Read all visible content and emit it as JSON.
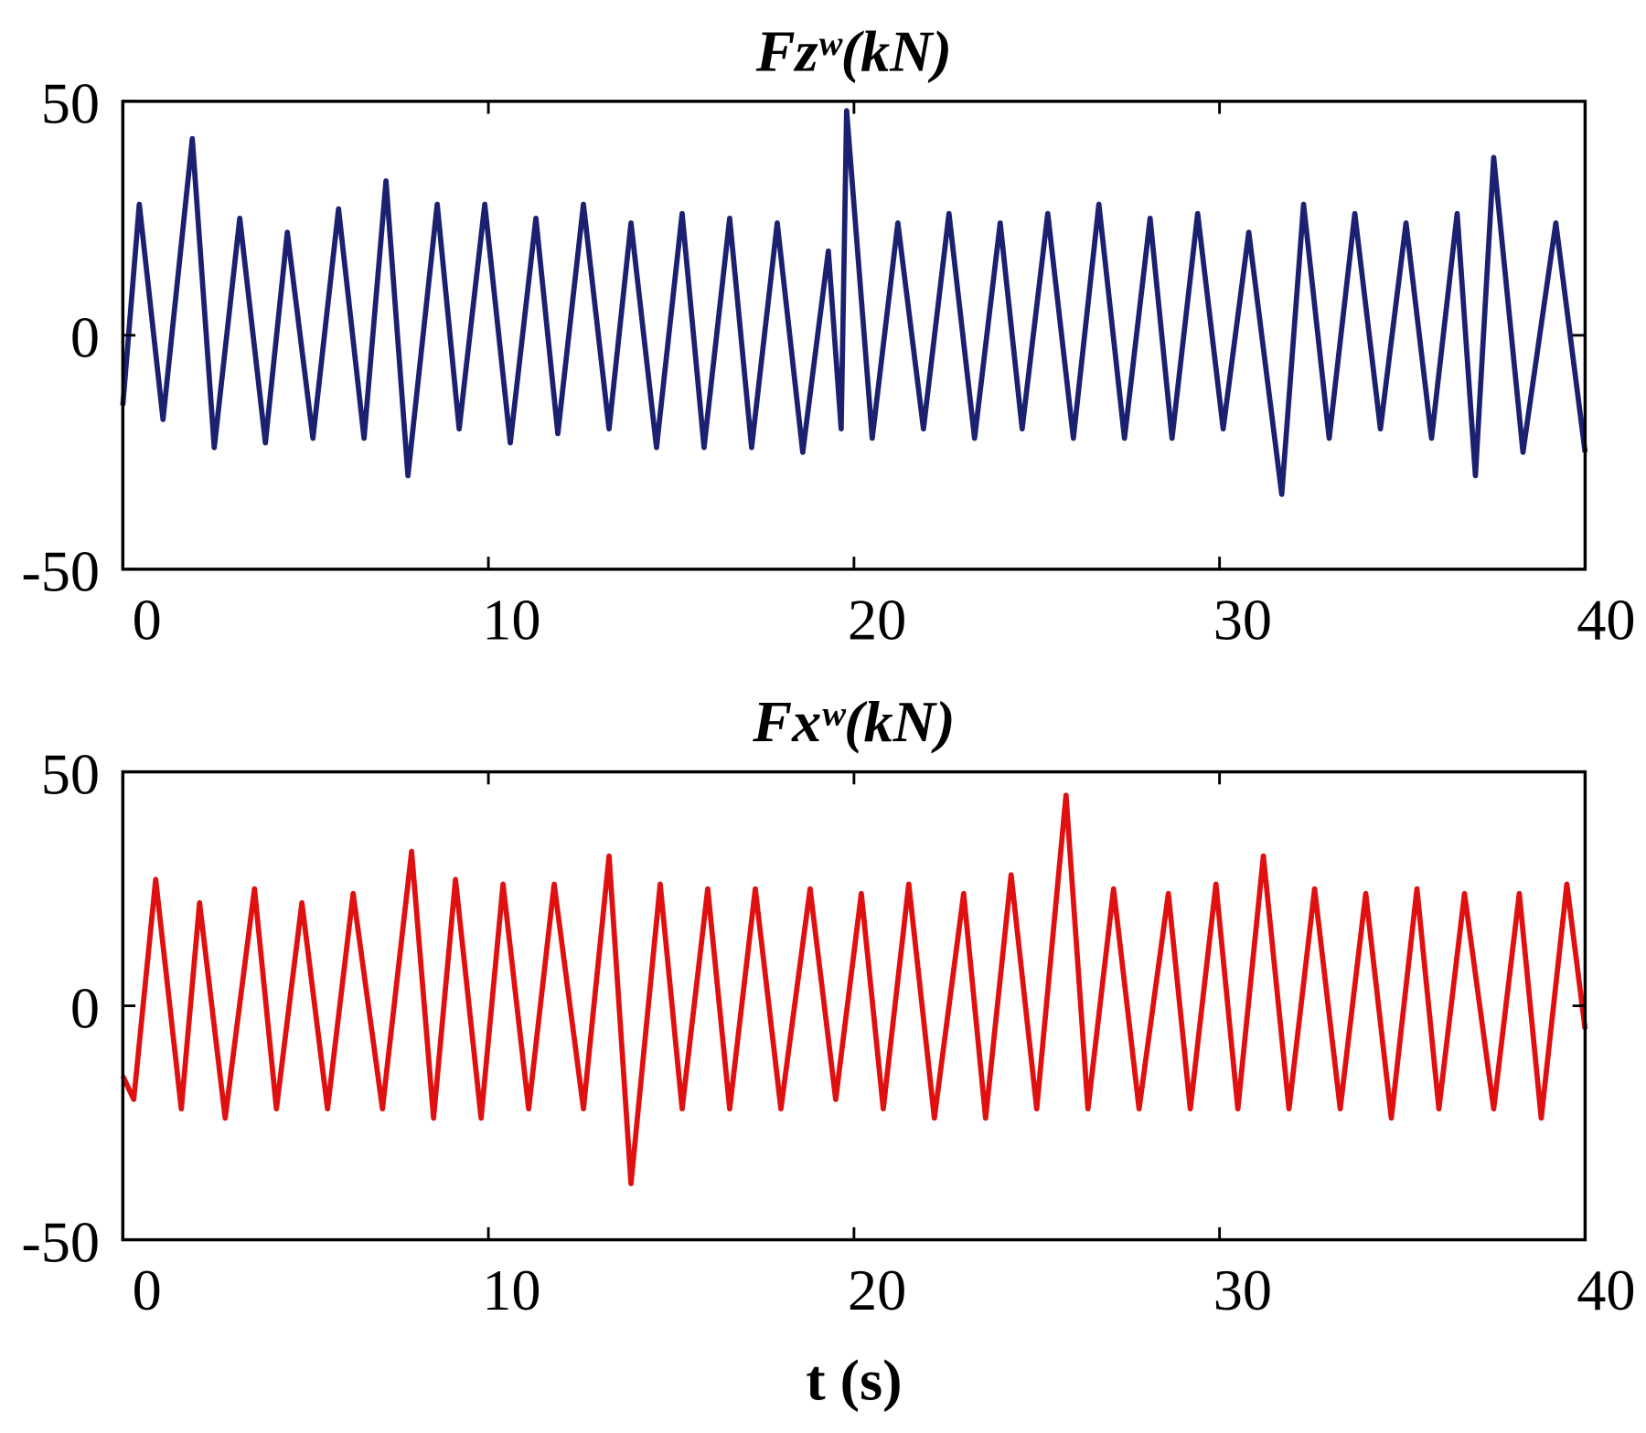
{
  "chart_data": [
    {
      "type": "line",
      "title": "Fzʷ(kN)",
      "xlim": [
        0,
        40
      ],
      "ylim": [
        -50,
        50
      ],
      "xticks": [
        0,
        10,
        20,
        30,
        40
      ],
      "yticks": [
        -50,
        0,
        50
      ],
      "grid": false,
      "x": [
        0,
        0.45,
        1.1,
        1.9,
        2.5,
        3.2,
        3.9,
        4.5,
        5.2,
        5.9,
        6.6,
        7.2,
        7.8,
        8.6,
        9.2,
        9.9,
        10.6,
        11.3,
        11.9,
        12.6,
        13.3,
        13.9,
        14.6,
        15.3,
        15.9,
        16.6,
        17.2,
        17.9,
        18.6,
        19.3,
        19.65,
        19.8,
        20.5,
        21.2,
        21.9,
        22.6,
        23.3,
        24.0,
        24.6,
        25.3,
        26.0,
        26.7,
        27.4,
        28.1,
        28.7,
        29.4,
        30.1,
        30.8,
        31.7,
        32.3,
        33.0,
        33.7,
        34.4,
        35.1,
        35.8,
        36.5,
        37.0,
        37.5,
        38.3,
        39.2,
        40
      ],
      "series": [
        {
          "color": "#1b2170",
          "values": [
            -15,
            28,
            -18,
            42,
            -24,
            25,
            -23,
            22,
            -22,
            27,
            -22,
            33,
            -30,
            28,
            -20,
            28,
            -23,
            25,
            -21,
            28,
            -20,
            24,
            -24,
            26,
            -24,
            25,
            -24,
            24,
            -25,
            18,
            -20,
            48,
            -22,
            24,
            -20,
            26,
            -22,
            24,
            -20,
            26,
            -22,
            28,
            -22,
            25,
            -22,
            26,
            -20,
            22,
            -34,
            28,
            -22,
            26,
            -20,
            24,
            -22,
            26,
            -30,
            38,
            -25,
            24,
            -25
          ]
        }
      ]
    },
    {
      "type": "line",
      "title": "Fxʷ(kN)",
      "xlabel": "t (s)",
      "xlim": [
        0,
        40
      ],
      "ylim": [
        -50,
        50
      ],
      "xticks": [
        0,
        10,
        20,
        30,
        40
      ],
      "yticks": [
        -50,
        0,
        50
      ],
      "grid": false,
      "x": [
        0,
        0.3,
        0.9,
        1.6,
        2.1,
        2.8,
        3.6,
        4.2,
        4.9,
        5.6,
        6.3,
        7.1,
        7.9,
        8.5,
        9.1,
        9.8,
        10.4,
        11.1,
        11.8,
        12.6,
        13.3,
        13.9,
        14.7,
        15.3,
        16.0,
        16.6,
        17.3,
        18.0,
        18.8,
        19.5,
        20.2,
        20.8,
        21.5,
        22.2,
        23.0,
        23.6,
        24.3,
        25.0,
        25.8,
        26.4,
        27.1,
        27.8,
        28.6,
        29.2,
        29.9,
        30.5,
        31.2,
        31.9,
        32.6,
        33.3,
        34.0,
        34.7,
        35.4,
        36.0,
        36.7,
        37.5,
        38.2,
        38.8,
        39.5,
        40
      ],
      "series": [
        {
          "color": "#e01010",
          "values": [
            -15,
            -20,
            27,
            -22,
            22,
            -24,
            25,
            -22,
            22,
            -22,
            24,
            -22,
            33,
            -24,
            27,
            -24,
            26,
            -22,
            26,
            -22,
            32,
            -38,
            26,
            -22,
            25,
            -22,
            25,
            -22,
            25,
            -20,
            24,
            -22,
            26,
            -24,
            24,
            -24,
            28,
            -22,
            45,
            -22,
            25,
            -22,
            24,
            -22,
            26,
            -22,
            32,
            -22,
            25,
            -22,
            24,
            -24,
            25,
            -22,
            24,
            -22,
            24,
            -24,
            26,
            -5
          ]
        }
      ]
    }
  ]
}
